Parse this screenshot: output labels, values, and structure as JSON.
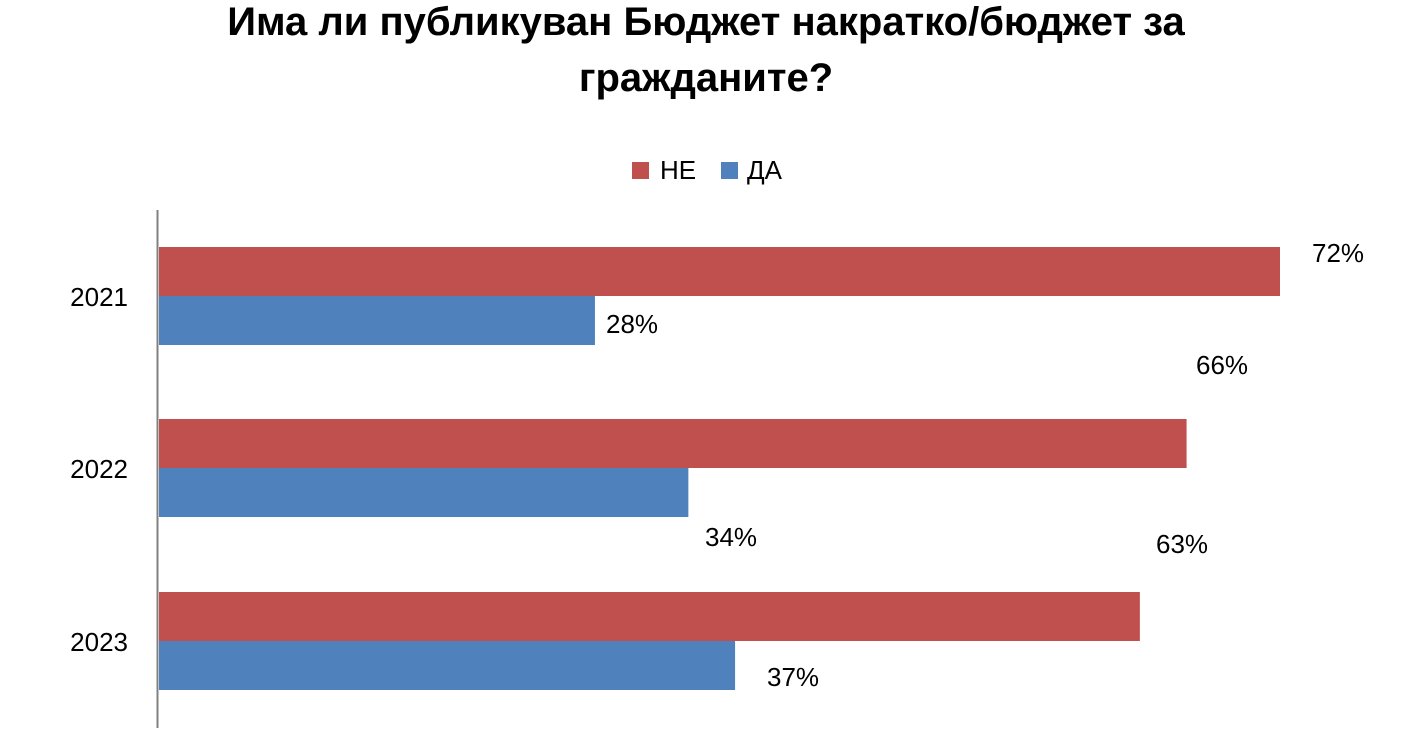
{
  "chart_data": {
    "type": "bar",
    "orientation": "horizontal",
    "title_lines": [
      "Има ли публикуван Бюджет накратко/бюджет за",
      "гражданите?"
    ],
    "categories": [
      "2021",
      "2022",
      "2023"
    ],
    "series": [
      {
        "name": "НЕ",
        "color": "#c0504d",
        "values": [
          72,
          66,
          63
        ],
        "labels": [
          "72%",
          "66%",
          "63%"
        ]
      },
      {
        "name": "ДА",
        "color": "#4f81bd",
        "values": [
          28,
          34,
          37
        ],
        "labels": [
          "28%",
          "34%",
          "37%"
        ]
      }
    ],
    "value_unit": "%",
    "xlim": [
      0,
      72
    ],
    "legend_position": "top-center",
    "grid": false,
    "axis_color": "#808080"
  }
}
